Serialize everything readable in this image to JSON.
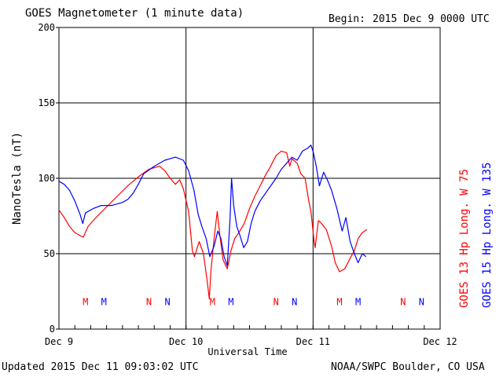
{
  "header": {
    "title": "GOES Magnetometer (1 minute data)",
    "begin_label": "Begin:",
    "begin_value": "2015 Dec 9 0000 UTC"
  },
  "footer": {
    "updated": "Updated 2015 Dec 11 09:03:02 UTC",
    "source": "NOAA/SWPC Boulder, CO USA"
  },
  "chart_data": {
    "type": "line",
    "title": "GOES Magnetometer (1 minute data)",
    "xlabel": "Universal Time",
    "ylabel": "NanoTesla (nT)",
    "ylim": [
      0,
      200
    ],
    "yticks": [
      "0",
      "50",
      "100",
      "150",
      "200"
    ],
    "xlim_hours": [
      0,
      72
    ],
    "xticks": [
      {
        "h": 0,
        "label": "Dec 9"
      },
      {
        "h": 24,
        "label": "Dec 10"
      },
      {
        "h": 48,
        "label": "Dec 11"
      },
      {
        "h": 72,
        "label": "Dec 12"
      }
    ],
    "grid": true,
    "legend": [
      {
        "text": "GOES 13 Hp  Long. W 75",
        "color": "#ff0000"
      },
      {
        "text": "GOES 15 Hp  Long. W 135",
        "color": "#0000ff"
      }
    ],
    "markers": [
      {
        "h": 5.0,
        "label": "M",
        "color": "#ff0000"
      },
      {
        "h": 8.5,
        "label": "M",
        "color": "#0000ff"
      },
      {
        "h": 17.0,
        "label": "N",
        "color": "#ff0000"
      },
      {
        "h": 20.5,
        "label": "N",
        "color": "#0000ff"
      },
      {
        "h": 29.0,
        "label": "M",
        "color": "#ff0000"
      },
      {
        "h": 32.5,
        "label": "M",
        "color": "#0000ff"
      },
      {
        "h": 41.0,
        "label": "N",
        "color": "#ff0000"
      },
      {
        "h": 44.5,
        "label": "N",
        "color": "#0000ff"
      },
      {
        "h": 53.0,
        "label": "M",
        "color": "#ff0000"
      },
      {
        "h": 56.5,
        "label": "M",
        "color": "#0000ff"
      },
      {
        "h": 65.0,
        "label": "N",
        "color": "#ff0000"
      },
      {
        "h": 68.5,
        "label": "N",
        "color": "#0000ff"
      }
    ],
    "series": [
      {
        "name": "GOES 13 Hp  Long. W 75",
        "color": "#ff0000",
        "points": [
          [
            0,
            79
          ],
          [
            1,
            74
          ],
          [
            2,
            68
          ],
          [
            3,
            64
          ],
          [
            4,
            62
          ],
          [
            4.6,
            61
          ],
          [
            5.5,
            68
          ],
          [
            7,
            74
          ],
          [
            9,
            81
          ],
          [
            11,
            88
          ],
          [
            13,
            95
          ],
          [
            15,
            101
          ],
          [
            17,
            106
          ],
          [
            19,
            108
          ],
          [
            20,
            105
          ],
          [
            21,
            100
          ],
          [
            22,
            96
          ],
          [
            22.8,
            99
          ],
          [
            23.5,
            93
          ],
          [
            24.5,
            78
          ],
          [
            25.2,
            52
          ],
          [
            25.6,
            48
          ],
          [
            26.5,
            58
          ],
          [
            27.3,
            50
          ],
          [
            28,
            32
          ],
          [
            28.4,
            20
          ],
          [
            28.7,
            38
          ],
          [
            29.3,
            60
          ],
          [
            29.9,
            78
          ],
          [
            30.4,
            62
          ],
          [
            31,
            46
          ],
          [
            31.8,
            40
          ],
          [
            32.5,
            52
          ],
          [
            33.2,
            60
          ],
          [
            34,
            64
          ],
          [
            35,
            70
          ],
          [
            36,
            80
          ],
          [
            37,
            88
          ],
          [
            38,
            95
          ],
          [
            39,
            102
          ],
          [
            40,
            108
          ],
          [
            41,
            115
          ],
          [
            42,
            118
          ],
          [
            43,
            117
          ],
          [
            43.6,
            108
          ],
          [
            44,
            113
          ],
          [
            45,
            110
          ],
          [
            45.7,
            103
          ],
          [
            46.5,
            100
          ],
          [
            47.2,
            85
          ],
          [
            47.6,
            78
          ],
          [
            48.2,
            58
          ],
          [
            48.4,
            54
          ],
          [
            49,
            72
          ],
          [
            49.6,
            70
          ],
          [
            50.5,
            66
          ],
          [
            51.5,
            55
          ],
          [
            52.2,
            44
          ],
          [
            53,
            38
          ],
          [
            54,
            40
          ],
          [
            55,
            47
          ],
          [
            55.8,
            52
          ],
          [
            56.5,
            60
          ],
          [
            57.3,
            64
          ],
          [
            58.2,
            66
          ]
        ]
      },
      {
        "name": "GOES 15 Hp  Long. W 135",
        "color": "#0000ff",
        "points": [
          [
            0,
            98
          ],
          [
            1,
            96
          ],
          [
            2,
            92
          ],
          [
            3,
            85
          ],
          [
            4,
            76
          ],
          [
            4.5,
            70
          ],
          [
            5,
            77
          ],
          [
            6.5,
            80
          ],
          [
            8,
            82
          ],
          [
            10,
            82
          ],
          [
            12,
            84
          ],
          [
            13,
            86
          ],
          [
            14,
            90
          ],
          [
            15,
            96
          ],
          [
            16,
            103
          ],
          [
            18,
            108
          ],
          [
            20,
            112
          ],
          [
            22,
            114
          ],
          [
            23.5,
            112
          ],
          [
            24.5,
            105
          ],
          [
            25.5,
            92
          ],
          [
            26.3,
            76
          ],
          [
            27,
            68
          ],
          [
            27.8,
            60
          ],
          [
            28.5,
            48
          ],
          [
            29.3,
            55
          ],
          [
            30,
            65
          ],
          [
            30.6,
            60
          ],
          [
            31.2,
            48
          ],
          [
            31.8,
            42
          ],
          [
            32.3,
            72
          ],
          [
            32.6,
            100
          ],
          [
            33,
            82
          ],
          [
            33.6,
            68
          ],
          [
            34.2,
            62
          ],
          [
            34.9,
            54
          ],
          [
            35.6,
            58
          ],
          [
            36.3,
            70
          ],
          [
            37,
            78
          ],
          [
            38,
            85
          ],
          [
            39,
            90
          ],
          [
            40,
            95
          ],
          [
            41,
            100
          ],
          [
            42,
            106
          ],
          [
            43,
            110
          ],
          [
            44,
            114
          ],
          [
            45,
            112
          ],
          [
            46,
            118
          ],
          [
            47,
            120
          ],
          [
            47.6,
            122
          ],
          [
            48,
            118
          ],
          [
            48.6,
            108
          ],
          [
            49.2,
            95
          ],
          [
            50,
            104
          ],
          [
            50.7,
            99
          ],
          [
            51.5,
            92
          ],
          [
            52.5,
            80
          ],
          [
            53.5,
            65
          ],
          [
            54.2,
            74
          ],
          [
            55,
            58
          ],
          [
            55.8,
            50
          ],
          [
            56.5,
            44
          ],
          [
            57.3,
            50
          ],
          [
            58,
            48
          ]
        ]
      }
    ]
  }
}
